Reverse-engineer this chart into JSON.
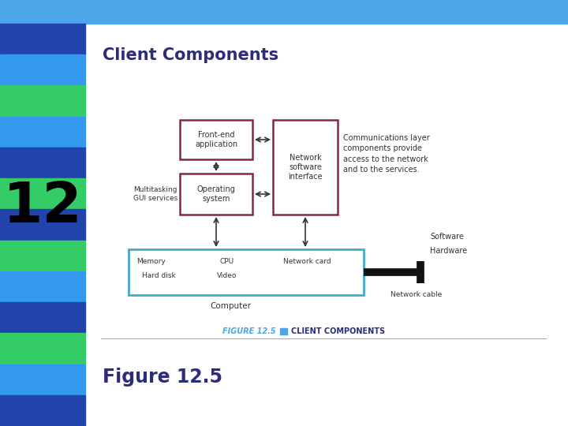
{
  "title": "Client Components",
  "figure_label": "Figure 12.5",
  "caption_label": "FIGURE 12.5",
  "caption_text": "CLIENT COMPONENTS",
  "bg_color": "#ffffff",
  "header_color": "#4da6e8",
  "stripe_pattern": [
    "#2244aa",
    "#3399ee",
    "#33cc66",
    "#3399ee",
    "#2244aa",
    "#33cc66",
    "#2244aa",
    "#33cc66",
    "#3399ee",
    "#2244aa",
    "#33cc66",
    "#3399ee",
    "#2244aa"
  ],
  "number_text": "12",
  "title_color": "#2d2d7a",
  "figure_label_color": "#2d2d7a",
  "caption_color": "#4da6e8",
  "caption_text_color": "#2d2d7a",
  "box_border_dark": "#8b2252",
  "box_bg": "#ffffff",
  "computer_border": "#44aacc",
  "network_cable_color": "#111111",
  "arrow_color": "#333333",
  "text_color": "#333333"
}
